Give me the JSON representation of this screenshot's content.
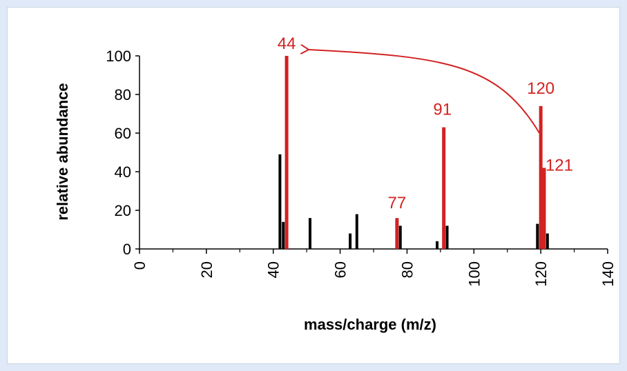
{
  "colors": {
    "background": "#dfe9f7",
    "panel": "#ffffff",
    "axis": "#000000",
    "black_bar": "#000000",
    "highlight": "#d22222"
  },
  "chart_data": {
    "type": "bar",
    "xlabel": "mass/charge (m/z)",
    "ylabel": "relative abundance",
    "xlim": [
      0,
      140
    ],
    "ylim": [
      0,
      100
    ],
    "x_ticks": [
      0,
      20,
      40,
      60,
      80,
      100,
      120,
      140
    ],
    "y_ticks": [
      0,
      20,
      40,
      60,
      80,
      100
    ],
    "grid": false,
    "peaks": [
      {
        "mz": 42,
        "abundance": 49,
        "highlight": false
      },
      {
        "mz": 43,
        "abundance": 14,
        "highlight": false
      },
      {
        "mz": 44,
        "abundance": 100,
        "highlight": true
      },
      {
        "mz": 51,
        "abundance": 16,
        "highlight": false
      },
      {
        "mz": 63,
        "abundance": 8,
        "highlight": false
      },
      {
        "mz": 65,
        "abundance": 18,
        "highlight": false
      },
      {
        "mz": 77,
        "abundance": 16,
        "highlight": true
      },
      {
        "mz": 78,
        "abundance": 12,
        "highlight": false
      },
      {
        "mz": 89,
        "abundance": 4,
        "highlight": false
      },
      {
        "mz": 91,
        "abundance": 63,
        "highlight": true
      },
      {
        "mz": 92,
        "abundance": 12,
        "highlight": false
      },
      {
        "mz": 119,
        "abundance": 13,
        "highlight": false
      },
      {
        "mz": 120,
        "abundance": 74,
        "highlight": true
      },
      {
        "mz": 121,
        "abundance": 42,
        "highlight": true
      },
      {
        "mz": 122,
        "abundance": 8,
        "highlight": false
      }
    ],
    "annotations": [
      {
        "text": "44",
        "mz": 44,
        "abundance": 100
      },
      {
        "text": "77",
        "mz": 77,
        "abundance": 16
      },
      {
        "text": "91",
        "mz": 91,
        "abundance": 63
      },
      {
        "text": "120",
        "mz": 120,
        "abundance": 74
      },
      {
        "text": "121",
        "mz": 121,
        "abundance": 42
      }
    ],
    "arrow": {
      "from_mz": 120,
      "to_mz": 44,
      "description": "curved arrow from peak 120 to peak 44"
    }
  }
}
